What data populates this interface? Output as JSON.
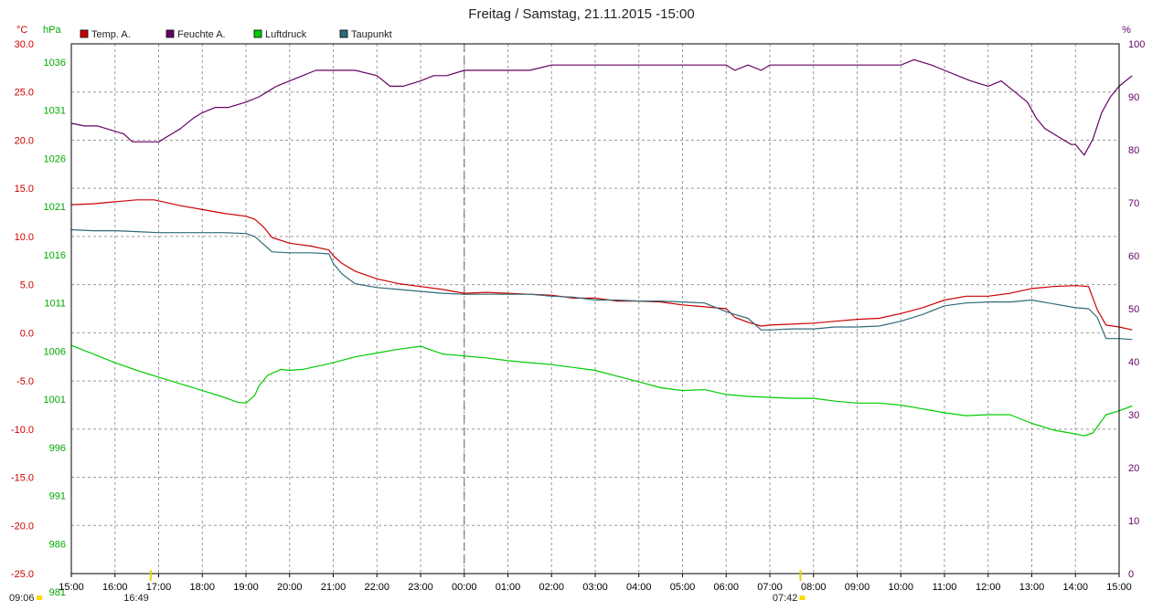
{
  "chart_data": {
    "type": "line",
    "title": "Freitag / Samstag, 21.11.2015  -15:00",
    "axes": {
      "temp": {
        "unit": "°C",
        "range": [
          -25,
          30
        ],
        "ticks": [
          "30.0",
          "25.0",
          "20.0",
          "15.0",
          "10.0",
          "5.0",
          "0.0",
          "-5.0",
          "-10.0",
          "-15.0",
          "-20.0",
          "-25.0"
        ],
        "color": "#cc0000"
      },
      "pressure": {
        "unit": "hPa",
        "range": [
          981,
          1036
        ],
        "ticks": [
          "1036",
          "1031",
          "1026",
          "1021",
          "1016",
          "1011",
          "1006",
          "1001",
          "996",
          "991",
          "986",
          "981"
        ],
        "color": "#00aa00"
      },
      "humidity": {
        "unit": "%",
        "range": [
          0,
          100
        ],
        "ticks": [
          "100",
          "90",
          "80",
          "70",
          "60",
          "50",
          "40",
          "30",
          "20",
          "10",
          "0"
        ],
        "color": "#660066"
      }
    },
    "x_hours": [
      "15:00",
      "16:00",
      "17:00",
      "18:00",
      "19:00",
      "20:00",
      "21:00",
      "22:00",
      "23:00",
      "00:00",
      "01:00",
      "02:00",
      "03:00",
      "04:00",
      "05:00",
      "06:00",
      "07:00",
      "08:00",
      "09:00",
      "10:00",
      "11:00",
      "12:00",
      "13:00",
      "14:00",
      "15:00"
    ],
    "x_units": "hours since 15:00 Friday",
    "grid": true,
    "legend_position": "top-left",
    "markers": {
      "sunrise": "07:42",
      "sunset": "16:49",
      "daylength": "09:06"
    },
    "series": [
      {
        "name": "Temp. A.",
        "axis": "temp",
        "color": "#cc0000",
        "x": [
          0,
          0.5,
          1,
          1.5,
          1.9,
          2.5,
          3,
          3.5,
          4,
          4.2,
          4.4,
          4.6,
          5,
          5.5,
          5.9,
          6,
          6.2,
          6.5,
          7,
          7.5,
          8,
          8.5,
          9,
          9.5,
          10,
          10.5,
          11,
          11.5,
          12,
          12.5,
          13,
          13.5,
          14,
          14.5,
          15,
          15.2,
          15.5,
          15.8,
          16,
          16.5,
          17,
          17.5,
          18,
          18.5,
          19,
          19.5,
          20,
          20.5,
          21,
          21.5,
          22,
          22.5,
          23,
          23.3,
          23.5,
          23.7,
          24,
          24.3
        ],
        "y": [
          13.3,
          13.4,
          13.6,
          13.8,
          13.8,
          13.2,
          12.8,
          12.4,
          12.1,
          11.8,
          11,
          9.9,
          9.3,
          9,
          8.6,
          8,
          7.2,
          6.4,
          5.6,
          5.1,
          4.8,
          4.5,
          4.1,
          4.2,
          4.1,
          4,
          3.9,
          3.6,
          3.6,
          3.3,
          3.3,
          3.2,
          2.9,
          2.7,
          2.5,
          1.6,
          1.1,
          0.7,
          0.8,
          0.9,
          1,
          1.2,
          1.4,
          1.5,
          2,
          2.6,
          3.4,
          3.8,
          3.8,
          4.1,
          4.6,
          4.8,
          4.9,
          4.8,
          2.4,
          0.8,
          0.6,
          0.3
        ]
      },
      {
        "name": "Feuchte A.",
        "axis": "humidity",
        "color": "#660066",
        "x": [
          0,
          0.3,
          0.6,
          1,
          1.2,
          1.4,
          1.7,
          2,
          2.3,
          2.5,
          2.8,
          3,
          3.3,
          3.6,
          4,
          4.3,
          4.5,
          4.7,
          5,
          5.3,
          5.6,
          6,
          6.5,
          7,
          7.3,
          7.6,
          8,
          8.3,
          8.6,
          9,
          9.5,
          10,
          10.5,
          11,
          11.5,
          12,
          12.5,
          13,
          13.5,
          14,
          14.5,
          15,
          15.2,
          15.5,
          15.8,
          16,
          16.5,
          17,
          17.5,
          18,
          18.5,
          19,
          19.3,
          19.7,
          20,
          20.3,
          20.6,
          21,
          21.3,
          21.6,
          21.9,
          22.1,
          22.3,
          22.5,
          22.7,
          22.9,
          23,
          23.1,
          23.2,
          23.4,
          23.6,
          23.8,
          24,
          24.3
        ],
        "y": [
          85,
          84.5,
          84.5,
          83.5,
          83,
          81.5,
          81.5,
          81.5,
          83,
          84,
          86,
          87,
          88,
          88,
          89,
          90,
          91,
          92,
          93,
          94,
          95,
          95,
          95,
          94,
          92,
          92,
          93,
          94,
          94,
          95,
          95,
          95,
          95,
          96,
          96,
          96,
          96,
          96,
          96,
          96,
          96,
          96,
          95,
          96,
          95,
          96,
          96,
          96,
          96,
          96,
          96,
          96,
          97,
          96,
          95,
          94,
          93,
          92,
          93,
          91,
          89,
          86,
          84,
          83,
          82,
          81,
          81,
          80,
          79,
          82,
          87,
          90,
          92,
          94
        ]
      },
      {
        "name": "Luftdruck",
        "axis": "pressure",
        "color": "#00cc00",
        "x": [
          0,
          0.5,
          1,
          1.5,
          2,
          2.5,
          3,
          3.5,
          3.8,
          4,
          4.2,
          4.3,
          4.5,
          4.8,
          5,
          5.3,
          5.6,
          6,
          6.5,
          7,
          7.5,
          8,
          8.5,
          9,
          9.5,
          10,
          10.5,
          11,
          11.5,
          12,
          12.5,
          13,
          13.5,
          14,
          14.5,
          15,
          15.5,
          16,
          16.5,
          17,
          17.5,
          18,
          18.5,
          19,
          19.5,
          20,
          20.5,
          21,
          21.5,
          22,
          22.5,
          23,
          23.2,
          23.4,
          23.7,
          24,
          24.3
        ],
        "y": [
          1004.7,
          1003.8,
          1002.9,
          1002.1,
          1001.4,
          1000.7,
          1000,
          999.3,
          998.8,
          998.7,
          999.5,
          1000.5,
          1001.6,
          1002.2,
          1002.1,
          1002.2,
          1002.5,
          1002.9,
          1003.5,
          1003.9,
          1004.3,
          1004.6,
          1003.8,
          1003.6,
          1003.4,
          1003.1,
          1002.9,
          1002.7,
          1002.4,
          1002.1,
          1001.5,
          1000.9,
          1000.3,
          1000,
          1000.1,
          999.6,
          999.4,
          999.3,
          999.2,
          999.2,
          998.9,
          998.7,
          998.7,
          998.5,
          998.1,
          997.7,
          997.4,
          997.5,
          997.5,
          996.6,
          995.9,
          995.5,
          995.3,
          995.6,
          997.5,
          997.9,
          998.4
        ]
      },
      {
        "name": "Taupunkt",
        "axis": "temp",
        "color": "#2e6b7a",
        "x": [
          0,
          0.5,
          1,
          1.5,
          2,
          2.5,
          3,
          3.5,
          4,
          4.2,
          4.4,
          4.6,
          5,
          5.5,
          5.9,
          6,
          6.2,
          6.5,
          7,
          7.5,
          8,
          8.5,
          9,
          9.5,
          10,
          10.5,
          11,
          11.5,
          12,
          12.5,
          13,
          13.5,
          14,
          14.5,
          15,
          15.2,
          15.5,
          15.8,
          16,
          16.5,
          17,
          17.5,
          18,
          18.5,
          19,
          19.5,
          20,
          20.5,
          21,
          21.5,
          22,
          22.5,
          23,
          23.3,
          23.5,
          23.7,
          24,
          24.3
        ],
        "y": [
          10.7,
          10.6,
          10.6,
          10.5,
          10.4,
          10.4,
          10.4,
          10.4,
          10.3,
          10,
          9.2,
          8.4,
          8.3,
          8.3,
          8.2,
          7.2,
          6.1,
          5.1,
          4.7,
          4.5,
          4.3,
          4.1,
          4,
          4,
          4,
          4,
          3.8,
          3.7,
          3.4,
          3.4,
          3.3,
          3.3,
          3.2,
          3.1,
          2.2,
          1.9,
          1.5,
          0.3,
          0.3,
          0.4,
          0.4,
          0.6,
          0.6,
          0.7,
          1.2,
          1.9,
          2.8,
          3.1,
          3.2,
          3.2,
          3.4,
          3,
          2.6,
          2.5,
          1.6,
          -0.6,
          -0.6,
          -0.7
        ]
      }
    ]
  }
}
